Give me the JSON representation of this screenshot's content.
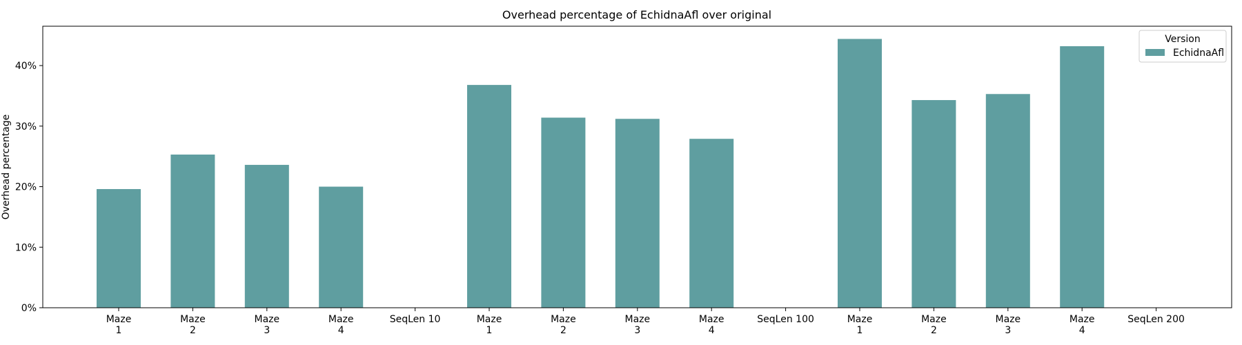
{
  "chart_data": {
    "type": "bar",
    "title": "Overhead percentage of EchidnaAfl over original",
    "xlabel": "",
    "ylabel": "Overhead percentage",
    "ylim": [
      0,
      46.5
    ],
    "yticks": [
      "0%",
      "10%",
      "20%",
      "30%",
      "40%"
    ],
    "ytick_values": [
      0,
      10,
      20,
      30,
      40
    ],
    "categories": [
      [
        "Maze",
        "1"
      ],
      [
        "Maze",
        "2"
      ],
      [
        "Maze",
        "3"
      ],
      [
        "Maze",
        "4"
      ],
      [
        "SeqLen 10"
      ],
      [
        "Maze",
        "1"
      ],
      [
        "Maze",
        "2"
      ],
      [
        "Maze",
        "3"
      ],
      [
        "Maze",
        "4"
      ],
      [
        "SeqLen 100"
      ],
      [
        "Maze",
        "1"
      ],
      [
        "Maze",
        "2"
      ],
      [
        "Maze",
        "3"
      ],
      [
        "Maze",
        "4"
      ],
      [
        "SeqLen 200"
      ]
    ],
    "series": [
      {
        "name": "EchidnaAfl",
        "color": "#5f9ea0",
        "values": [
          19.6,
          25.3,
          23.6,
          20.0,
          null,
          36.8,
          31.4,
          31.2,
          27.9,
          null,
          44.4,
          34.3,
          35.3,
          43.2,
          null
        ]
      }
    ],
    "legend": {
      "title": "Version",
      "placement": "top-right"
    },
    "grid": false
  }
}
